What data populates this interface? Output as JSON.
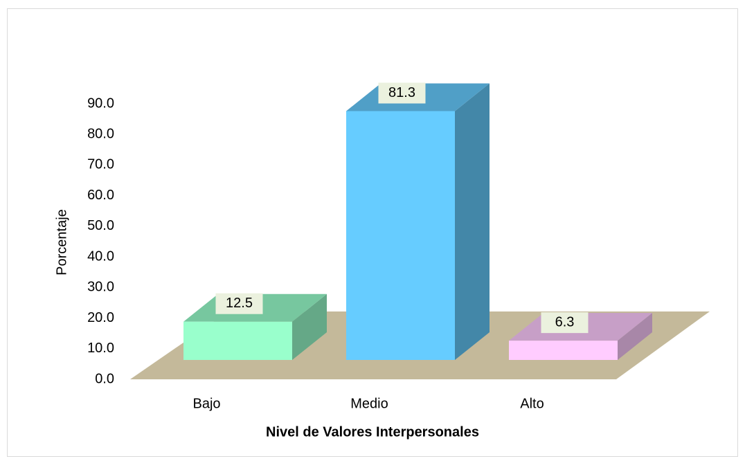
{
  "chart_data": {
    "type": "bar3d",
    "categories": [
      "Bajo",
      "Medio",
      "Alto"
    ],
    "values": [
      12.5,
      81.3,
      6.3
    ],
    "colors": [
      "#99ffcc",
      "#66ccff",
      "#ffccff"
    ],
    "xlabel": "Nivel de Valores Interpersonales",
    "ylabel": "Porcentaje",
    "ylim": [
      0,
      90
    ],
    "yticks": [
      {
        "value": 0,
        "label": "0.0"
      },
      {
        "value": 10,
        "label": "10.0"
      },
      {
        "value": 20,
        "label": "20.0"
      },
      {
        "value": 30,
        "label": "30.0"
      },
      {
        "value": 40,
        "label": "40.0"
      },
      {
        "value": 50,
        "label": "50.0"
      },
      {
        "value": 60,
        "label": "60.0"
      },
      {
        "value": 70,
        "label": "70.0"
      },
      {
        "value": 80,
        "label": "80.0"
      },
      {
        "value": 90,
        "label": "90.0"
      }
    ],
    "grid": false
  }
}
